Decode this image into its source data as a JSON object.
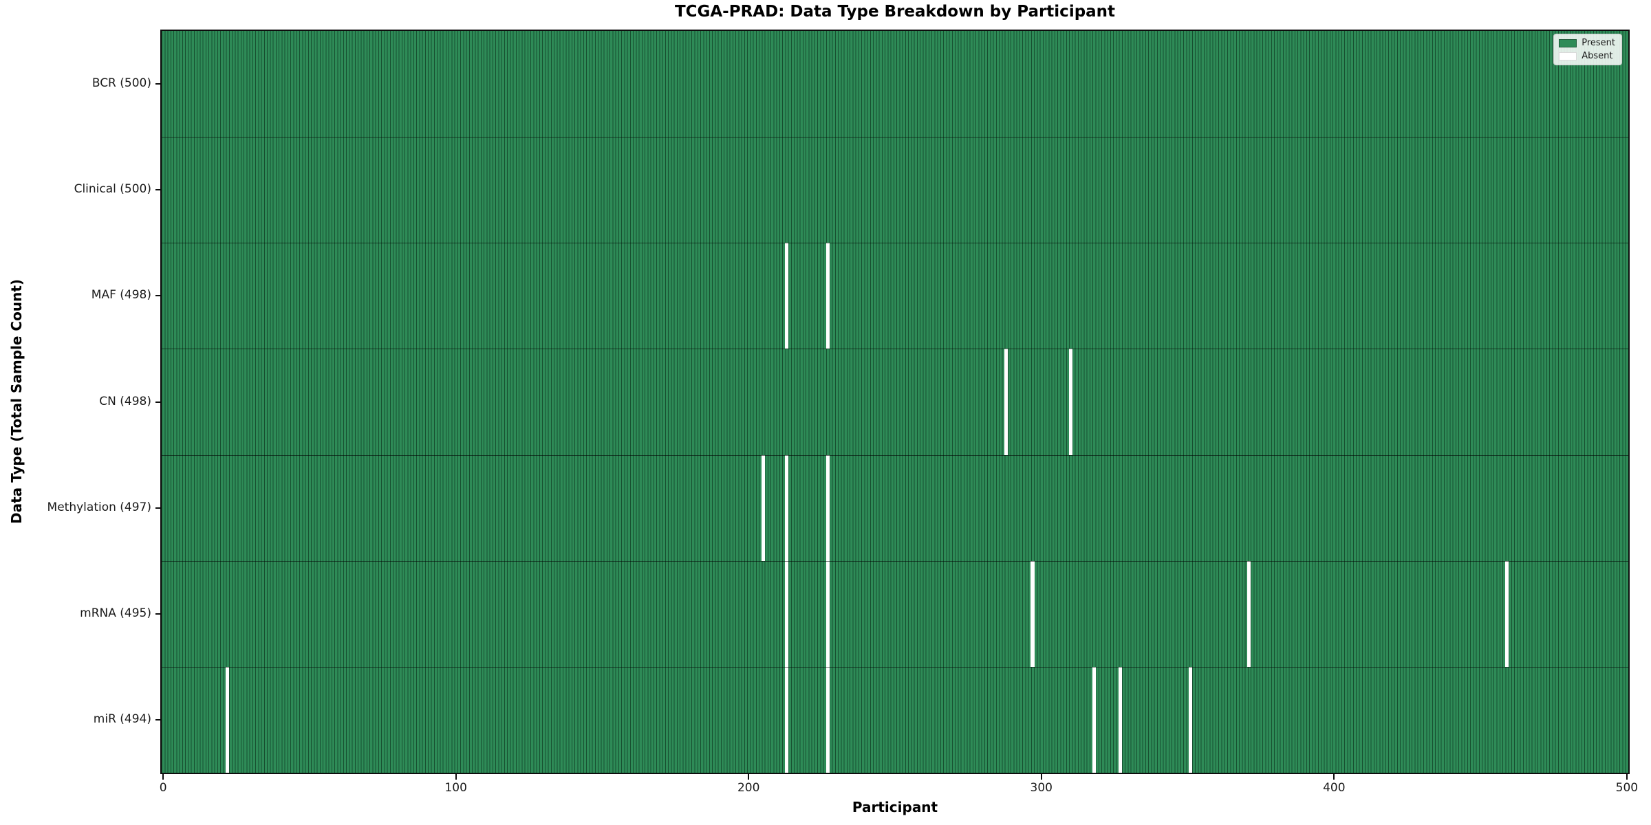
{
  "chart_data": {
    "type": "heatmap",
    "title": "TCGA-PRAD: Data Type Breakdown by Participant",
    "xlabel": "Participant",
    "ylabel": "Data Type (Total Sample Count)",
    "n_participants": 500,
    "xlim": [
      -0.5,
      500.5
    ],
    "x_ticks": [
      0,
      100,
      200,
      300,
      400,
      500
    ],
    "grid": false,
    "legend": {
      "position": "upper right",
      "entries": [
        {
          "label": "Present",
          "color": "#2e8b57"
        },
        {
          "label": "Absent",
          "color": "#ffffff"
        }
      ]
    },
    "rows": [
      {
        "label": "BCR (500)",
        "data_type": "BCR",
        "total": 500,
        "absent_participants": []
      },
      {
        "label": "Clinical (500)",
        "data_type": "Clinical",
        "total": 500,
        "absent_participants": []
      },
      {
        "label": "MAF (498)",
        "data_type": "MAF",
        "total": 498,
        "absent_participants": [
          213,
          227
        ]
      },
      {
        "label": "CN (498)",
        "data_type": "CN",
        "total": 498,
        "absent_participants": [
          288,
          310
        ]
      },
      {
        "label": "Methylation (497)",
        "data_type": "Methylation",
        "total": 497,
        "absent_participants": [
          205,
          213,
          227
        ]
      },
      {
        "label": "mRNA (495)",
        "data_type": "mRNA",
        "total": 495,
        "absent_participants": [
          213,
          227,
          297,
          371,
          459
        ]
      },
      {
        "label": "miR (494)",
        "data_type": "miR",
        "total": 494,
        "absent_participants": [
          22,
          213,
          227,
          318,
          327,
          351
        ]
      }
    ],
    "colors": {
      "present": "#2e8b57",
      "absent": "#ffffff",
      "bar_edge": "rgba(0,20,10,0.5)",
      "row_divider": "rgba(0,0,0,0.55)",
      "spine": "#0d0d0d"
    }
  }
}
